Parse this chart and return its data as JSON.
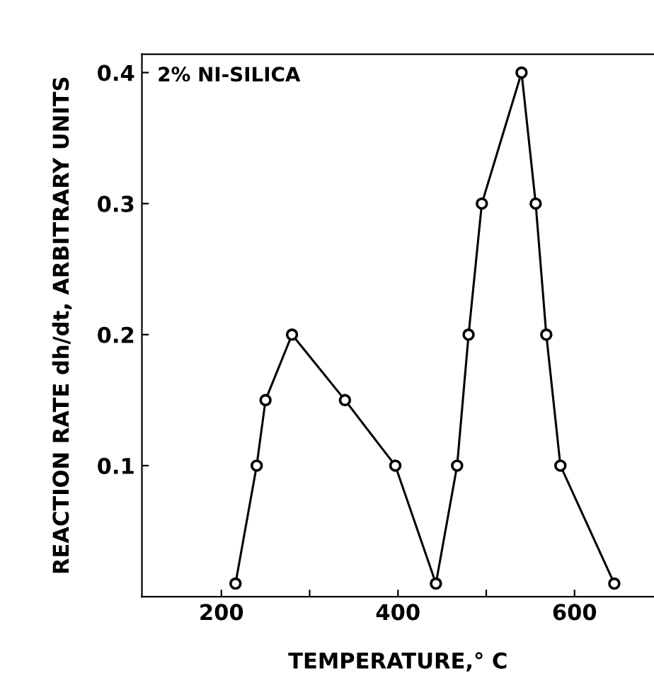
{
  "chart_data": {
    "type": "line",
    "xlabel": "TEMPERATURE,° C",
    "ylabel": "REACTION RATE dh/dt, ARBITRARY UNITS",
    "annotations": [
      "2% NI-SILICA"
    ],
    "series": [
      {
        "color": "#000000",
        "x": [
          216,
          240,
          250,
          280,
          340,
          397,
          443,
          467,
          480,
          495,
          540,
          556,
          568,
          584,
          645
        ],
        "values": [
          0.01,
          0.1,
          0.15,
          0.2,
          0.15,
          0.1,
          0.01,
          0.1,
          0.2,
          0.3,
          0.4,
          0.3,
          0.2,
          0.1,
          0.01
        ]
      }
    ],
    "xlim": [
      110,
      690
    ],
    "ylim": [
      0,
      0.414
    ],
    "xticks": [
      200,
      {
        "value": 300,
        "label": null
      },
      400,
      {
        "value": 500,
        "label": null
      },
      600
    ],
    "yticks": [
      {
        "value": 0.1,
        "label": "0.1"
      },
      {
        "value": 0.2,
        "label": "0.2"
      },
      {
        "value": 0.3,
        "label": "0.3"
      },
      {
        "value": 0.4,
        "label": "0.4"
      }
    ],
    "marker": "circle",
    "line_style": "solid",
    "grid": false,
    "legend": false
  }
}
